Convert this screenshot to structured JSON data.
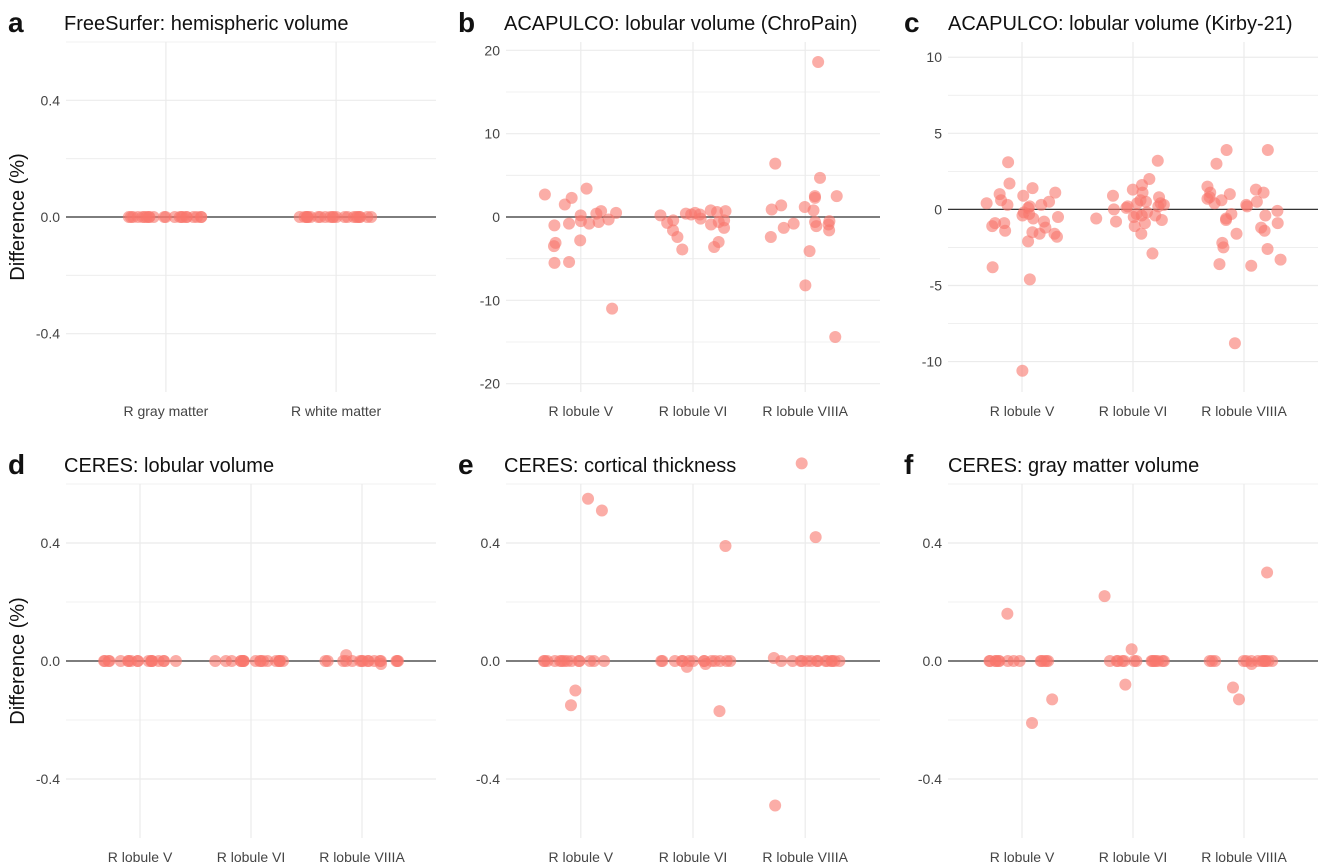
{
  "panels": [
    {
      "letter": "a",
      "title": "FreeSurfer: hemispheric volume",
      "ylabel": "Difference (%)",
      "chart_data": {
        "type": "scatter",
        "categories": [
          "R gray matter",
          "R white matter"
        ],
        "yticks": [
          "0.4",
          "0.0",
          "-0.4"
        ],
        "ytick_values": [
          0.4,
          0.0,
          -0.4
        ],
        "ylim": [
          -0.6,
          0.6
        ],
        "reference_line": 0,
        "grid": true,
        "points": [
          {
            "cat": 0,
            "y": [
              0,
              0,
              0,
              0,
              0,
              0,
              0,
              0,
              0,
              0,
              0,
              0,
              0,
              0,
              0,
              0,
              0,
              0,
              0,
              0,
              0,
              0
            ]
          },
          {
            "cat": 1,
            "y": [
              0,
              0,
              0,
              0,
              0,
              0,
              0,
              0,
              0,
              0,
              0,
              0,
              0,
              0,
              0,
              0,
              0,
              0,
              0,
              0,
              0,
              0
            ]
          }
        ]
      }
    },
    {
      "letter": "b",
      "title": "ACAPULCO: lobular volume (ChroPain)",
      "ylabel": "",
      "chart_data": {
        "type": "scatter",
        "categories": [
          "R lobule V",
          "R lobule VI",
          "R lobule VIIIA"
        ],
        "yticks": [
          "20",
          "10",
          "0",
          "-10",
          "-20"
        ],
        "ytick_values": [
          20,
          10,
          0,
          -10,
          -20
        ],
        "ylim": [
          -21,
          21
        ],
        "reference_line": 0,
        "grid": true,
        "points": [
          {
            "cat": 0,
            "y": [
              0.5,
              2.7,
              2.3,
              1.5,
              3.4,
              -0.3,
              -0.6,
              -1.0,
              -0.8,
              0.7,
              -0.8,
              -0.5,
              -3.5,
              -3.1,
              -2.8,
              -5.5,
              -5.4,
              -11.0,
              0.4,
              0.2
            ]
          },
          {
            "cat": 1,
            "y": [
              0.6,
              0.3,
              -0.4,
              -0.9,
              0.8,
              0.5,
              -0.6,
              -1.3,
              -1.6,
              -2.4,
              -3.0,
              -3.9,
              -3.6,
              0.2,
              0.7,
              -0.2,
              -0.4,
              0.3,
              0.4,
              -0.7
            ]
          },
          {
            "cat": 2,
            "y": [
              1.4,
              0.8,
              -0.9,
              -0.6,
              2.3,
              2.5,
              4.7,
              6.4,
              1.2,
              -0.5,
              -1.1,
              -1.6,
              0.9,
              -1.3,
              -2.4,
              2.5,
              -0.8,
              -4.1,
              -8.2,
              -14.4,
              18.6
            ]
          }
        ]
      }
    },
    {
      "letter": "c",
      "title": "ACAPULCO: lobular volume (Kirby-21)",
      "ylabel": "",
      "chart_data": {
        "type": "scatter",
        "categories": [
          "R lobule V",
          "R lobule VI",
          "R lobule VIIIA"
        ],
        "yticks": [
          "10",
          "5",
          "0",
          "-5",
          "-10"
        ],
        "ytick_values": [
          10,
          5,
          0,
          -5,
          -10
        ],
        "ylim": [
          -12,
          11
        ],
        "reference_line": 0,
        "grid": true,
        "points": [
          {
            "cat": 0,
            "y": [
              0.3,
              0.5,
              -0.2,
              -0.9,
              -1.2,
              -1.6,
              -2.1,
              0.6,
              -0.5,
              -1.1,
              -1.6,
              1.0,
              0.9,
              0.4,
              0.2,
              -0.6,
              -0.3,
              1.7,
              1.1,
              -0.4,
              0.1,
              1.4,
              -0.9,
              3.1,
              -4.6,
              -3.8,
              -10.6,
              -1.4,
              -1.8,
              0.3,
              -0.8,
              -1.5
            ]
          },
          {
            "cat": 1,
            "y": [
              0.4,
              0.8,
              1.3,
              1.6,
              0.2,
              -0.4,
              -0.7,
              0.5,
              0.9,
              -0.6,
              -0.2,
              1.1,
              0.4,
              -0.9,
              -1.1,
              -1.6,
              2.0,
              3.2,
              -2.9,
              0.3,
              -0.5,
              0.1,
              -0.3,
              0.6,
              -0.8,
              0.0,
              0.2,
              -0.4
            ]
          },
          {
            "cat": 2,
            "y": [
              1.3,
              1.1,
              0.4,
              -0.4,
              -0.9,
              -1.4,
              -2.2,
              -3.6,
              -3.7,
              0.5,
              1.0,
              0.7,
              3.0,
              3.9,
              -1.2,
              0.3,
              -0.6,
              1.1,
              0.2,
              -0.1,
              -0.7,
              0.6,
              1.5,
              3.9,
              -2.6,
              -3.3,
              -1.6,
              -2.5,
              -8.8,
              0.8,
              -0.3
            ]
          }
        ]
      }
    },
    {
      "letter": "d",
      "title": "CERES: lobular volume",
      "ylabel": "Difference (%)",
      "chart_data": {
        "type": "scatter",
        "categories": [
          "R lobule V",
          "R lobule VI",
          "R lobule VIIIA"
        ],
        "yticks": [
          "0.4",
          "0.0",
          "-0.4"
        ],
        "ytick_values": [
          0.4,
          0.0,
          -0.4
        ],
        "ylim": [
          -0.6,
          0.6
        ],
        "reference_line": 0,
        "grid": true,
        "points": [
          {
            "cat": 0,
            "y": [
              0,
              0,
              0,
              0,
              0,
              0,
              0,
              0,
              0,
              0,
              0,
              0,
              0,
              0,
              0,
              0,
              0,
              0
            ]
          },
          {
            "cat": 1,
            "y": [
              0,
              0,
              0,
              0,
              0,
              0,
              0,
              0,
              0,
              0,
              0,
              0,
              0,
              0,
              0,
              0,
              0,
              0
            ]
          },
          {
            "cat": 2,
            "y": [
              0,
              0,
              0,
              0,
              0,
              0,
              0,
              0,
              0,
              0,
              0,
              0,
              0,
              0,
              0.02,
              -0.01,
              0,
              0
            ]
          }
        ]
      }
    },
    {
      "letter": "e",
      "title": "CERES: cortical thickness",
      "ylabel": "",
      "chart_data": {
        "type": "scatter",
        "categories": [
          "R lobule V",
          "R lobule VI",
          "R lobule VIIIA"
        ],
        "yticks": [
          "0.4",
          "0.0",
          "-0.4"
        ],
        "ytick_values": [
          0.4,
          0.0,
          -0.4
        ],
        "ylim": [
          -0.6,
          0.6
        ],
        "reference_line": 0,
        "grid": true,
        "points": [
          {
            "cat": 0,
            "y": [
              0.55,
              0.51,
              -0.1,
              -0.15,
              0,
              0,
              0,
              0,
              0,
              0,
              0,
              0,
              0,
              0,
              0,
              0,
              0,
              0
            ]
          },
          {
            "cat": 1,
            "y": [
              0.39,
              -0.17,
              -0.02,
              -0.01,
              0,
              0,
              0,
              0,
              0,
              0,
              0,
              0,
              0,
              0,
              0,
              0,
              0,
              0
            ]
          },
          {
            "cat": 2,
            "y": [
              0.67,
              0.42,
              -0.49,
              0.01,
              0,
              0,
              0,
              0,
              0,
              0,
              0,
              0,
              0,
              0,
              0,
              0,
              0,
              0
            ]
          }
        ]
      }
    },
    {
      "letter": "f",
      "title": "CERES: gray matter volume",
      "ylabel": "",
      "chart_data": {
        "type": "scatter",
        "categories": [
          "R lobule V",
          "R lobule VI",
          "R lobule VIIIA"
        ],
        "yticks": [
          "0.4",
          "0.0",
          "-0.4"
        ],
        "ytick_values": [
          0.4,
          0.0,
          -0.4
        ],
        "ylim": [
          -0.6,
          0.6
        ],
        "reference_line": 0,
        "grid": true,
        "points": [
          {
            "cat": 0,
            "y": [
              0.16,
              -0.13,
              -0.21,
              0,
              0,
              0,
              0,
              0,
              0,
              0,
              0,
              0,
              0,
              0,
              0,
              0,
              0
            ]
          },
          {
            "cat": 1,
            "y": [
              0.22,
              0.04,
              -0.08,
              0,
              0,
              0,
              0,
              0,
              0,
              0,
              0,
              0,
              0,
              0,
              0,
              0,
              0
            ]
          },
          {
            "cat": 2,
            "y": [
              0.3,
              -0.09,
              -0.13,
              -0.01,
              0,
              0,
              0,
              0,
              0,
              0,
              0,
              0,
              0,
              0,
              0,
              0,
              0
            ]
          }
        ]
      }
    }
  ],
  "colors": {
    "point": "#F8766D",
    "grid": "#EBEBEB",
    "zero_line": "#333333"
  }
}
